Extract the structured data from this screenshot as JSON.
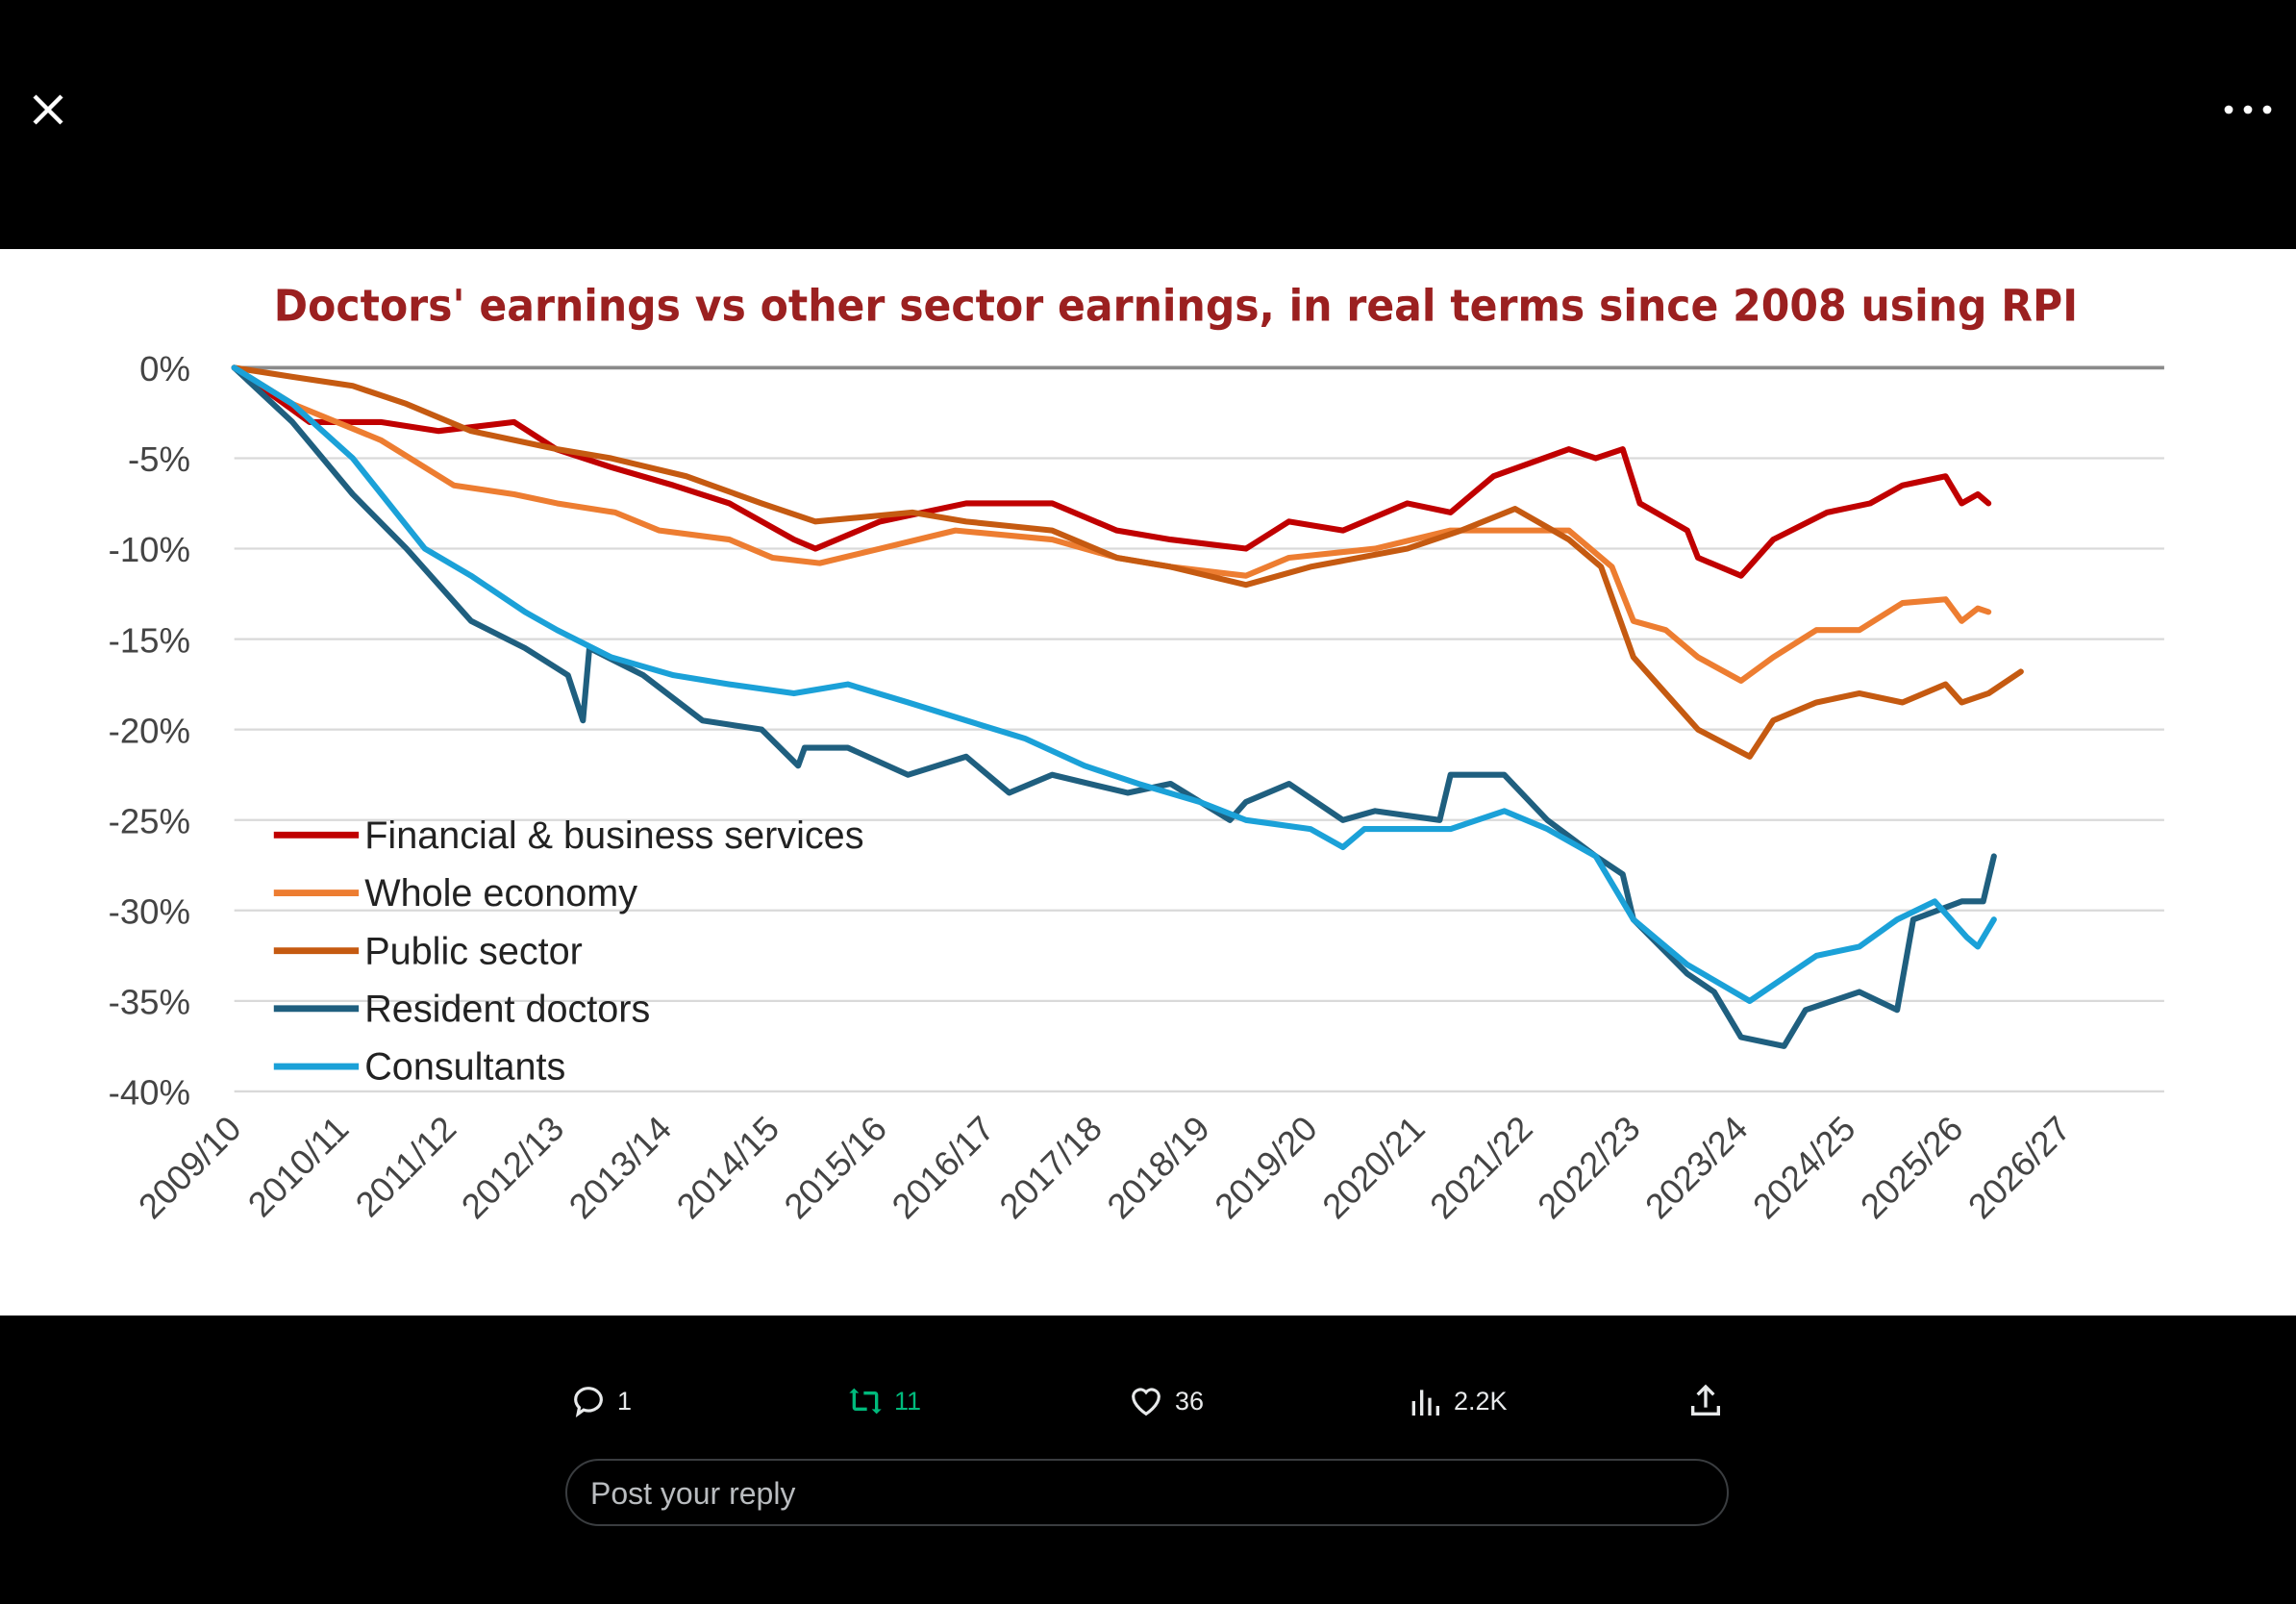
{
  "toolbar": {
    "close_icon": "close-icon",
    "more_icon": "more-icon"
  },
  "actions": {
    "replies": "1",
    "reposts": "11",
    "likes": "36",
    "views": "2.2K",
    "repost_color": "#00ba7c"
  },
  "reply": {
    "placeholder": "Post your reply"
  },
  "chart_data": {
    "type": "line",
    "title": "Doctors' earnings vs other sector earnings, in real terms since 2008 using RPI",
    "xlabel": "",
    "ylabel": "",
    "categories": [
      "2009/10",
      "2010/11",
      "2011/12",
      "2012/13",
      "2013/14",
      "2014/15",
      "2015/16",
      "2016/17",
      "2017/18",
      "2018/19",
      "2019/20",
      "2020/21",
      "2021/22",
      "2022/23",
      "2023/24",
      "2024/25",
      "2025/26",
      "2026/27"
    ],
    "y_ticks": [
      "0%",
      "-5%",
      "-10%",
      "-15%",
      "-20%",
      "-25%",
      "-30%",
      "-35%",
      "-40%"
    ],
    "ylim": [
      -40,
      0
    ],
    "grid": true,
    "legend_position": "bottom-left",
    "x_unit": "years since start of 2009/10 (category index)",
    "series": [
      {
        "name": "Financial & business services",
        "color": "#c00000",
        "points": [
          [
            0,
            0
          ],
          [
            0.7,
            -3
          ],
          [
            1.36,
            -3
          ],
          [
            1.9,
            -3.5
          ],
          [
            2.6,
            -3
          ],
          [
            2.99,
            -4.5
          ],
          [
            3.5,
            -5.5
          ],
          [
            4.08,
            -6.5
          ],
          [
            4.6,
            -7.5
          ],
          [
            5.2,
            -9.5
          ],
          [
            5.4,
            -10
          ],
          [
            6.0,
            -8.5
          ],
          [
            6.8,
            -7.5
          ],
          [
            7.6,
            -7.5
          ],
          [
            8.2,
            -9
          ],
          [
            8.7,
            -9.5
          ],
          [
            9.4,
            -10
          ],
          [
            9.8,
            -8.5
          ],
          [
            10.3,
            -9
          ],
          [
            10.9,
            -7.5
          ],
          [
            11.3,
            -8
          ],
          [
            11.7,
            -6
          ],
          [
            12.4,
            -4.5
          ],
          [
            12.65,
            -5
          ],
          [
            12.9,
            -4.5
          ],
          [
            13.06,
            -7.5
          ],
          [
            13.5,
            -9
          ],
          [
            13.6,
            -10.5
          ],
          [
            14.0,
            -11.5
          ],
          [
            14.3,
            -9.5
          ],
          [
            14.8,
            -8
          ],
          [
            15.2,
            -7.5
          ],
          [
            15.5,
            -6.5
          ],
          [
            15.9,
            -6
          ],
          [
            16.05,
            -7.5
          ],
          [
            16.2,
            -7
          ],
          [
            16.3,
            -7.5
          ]
        ]
      },
      {
        "name": "Whole economy",
        "color": "#ed7d31",
        "points": [
          [
            0,
            0
          ],
          [
            0.54,
            -2
          ],
          [
            1.36,
            -4
          ],
          [
            2.04,
            -6.5
          ],
          [
            2.6,
            -7
          ],
          [
            3.0,
            -7.5
          ],
          [
            3.54,
            -8
          ],
          [
            3.95,
            -9
          ],
          [
            4.6,
            -9.5
          ],
          [
            5.0,
            -10.5
          ],
          [
            5.44,
            -10.8
          ],
          [
            6.0,
            -10
          ],
          [
            6.7,
            -9
          ],
          [
            7.6,
            -9.5
          ],
          [
            8.2,
            -10.5
          ],
          [
            8.7,
            -11
          ],
          [
            9.4,
            -11.5
          ],
          [
            9.8,
            -10.5
          ],
          [
            10.6,
            -10
          ],
          [
            11.3,
            -9
          ],
          [
            12.0,
            -9
          ],
          [
            12.4,
            -9
          ],
          [
            12.8,
            -11
          ],
          [
            13.0,
            -14
          ],
          [
            13.3,
            -14.5
          ],
          [
            13.6,
            -16
          ],
          [
            14.0,
            -17.3
          ],
          [
            14.3,
            -16
          ],
          [
            14.7,
            -14.5
          ],
          [
            15.1,
            -14.5
          ],
          [
            15.5,
            -13
          ],
          [
            15.9,
            -12.8
          ],
          [
            16.05,
            -14
          ],
          [
            16.2,
            -13.3
          ],
          [
            16.3,
            -13.5
          ]
        ]
      },
      {
        "name": "Public sector",
        "color": "#c55a11",
        "points": [
          [
            0,
            0
          ],
          [
            0.54,
            -0.5
          ],
          [
            1.1,
            -1
          ],
          [
            1.6,
            -2
          ],
          [
            2.2,
            -3.5
          ],
          [
            3.0,
            -4.5
          ],
          [
            3.5,
            -5
          ],
          [
            4.2,
            -6
          ],
          [
            4.9,
            -7.5
          ],
          [
            5.4,
            -8.5
          ],
          [
            6.3,
            -8
          ],
          [
            6.8,
            -8.5
          ],
          [
            7.6,
            -9
          ],
          [
            8.2,
            -10.5
          ],
          [
            8.7,
            -11
          ],
          [
            9.4,
            -12
          ],
          [
            10.0,
            -11
          ],
          [
            10.9,
            -10
          ],
          [
            11.4,
            -9
          ],
          [
            11.9,
            -7.8
          ],
          [
            12.4,
            -9.5
          ],
          [
            12.7,
            -11
          ],
          [
            13.0,
            -16
          ],
          [
            13.3,
            -18
          ],
          [
            13.6,
            -20
          ],
          [
            14.08,
            -21.5
          ],
          [
            14.3,
            -19.5
          ],
          [
            14.7,
            -18.5
          ],
          [
            15.1,
            -18
          ],
          [
            15.5,
            -18.5
          ],
          [
            15.9,
            -17.5
          ],
          [
            16.05,
            -18.5
          ],
          [
            16.3,
            -18
          ],
          [
            16.6,
            -16.8
          ]
        ]
      },
      {
        "name": "Resident doctors",
        "color": "#1f5f7f",
        "points": [
          [
            0,
            0
          ],
          [
            0.54,
            -3
          ],
          [
            1.1,
            -7
          ],
          [
            1.6,
            -10
          ],
          [
            2.2,
            -14
          ],
          [
            2.7,
            -15.5
          ],
          [
            3.1,
            -17
          ],
          [
            3.24,
            -19.5
          ],
          [
            3.3,
            -15.5
          ],
          [
            3.8,
            -17
          ],
          [
            4.35,
            -19.5
          ],
          [
            4.9,
            -20
          ],
          [
            5.24,
            -22
          ],
          [
            5.3,
            -21
          ],
          [
            5.7,
            -21
          ],
          [
            6.26,
            -22.5
          ],
          [
            6.8,
            -21.5
          ],
          [
            7.2,
            -23.5
          ],
          [
            7.6,
            -22.5
          ],
          [
            8.3,
            -23.5
          ],
          [
            8.7,
            -23
          ],
          [
            9.25,
            -25
          ],
          [
            9.4,
            -24
          ],
          [
            9.8,
            -23
          ],
          [
            10.3,
            -25
          ],
          [
            10.6,
            -24.5
          ],
          [
            11.2,
            -25
          ],
          [
            11.3,
            -22.5
          ],
          [
            11.8,
            -22.5
          ],
          [
            12.2,
            -25
          ],
          [
            12.65,
            -27
          ],
          [
            12.9,
            -28
          ],
          [
            13.0,
            -30.5
          ],
          [
            13.5,
            -33.5
          ],
          [
            13.75,
            -34.5
          ],
          [
            14.0,
            -37
          ],
          [
            14.4,
            -37.5
          ],
          [
            14.6,
            -35.5
          ],
          [
            15.1,
            -34.5
          ],
          [
            15.45,
            -35.5
          ],
          [
            15.6,
            -30.5
          ],
          [
            16.05,
            -29.5
          ],
          [
            16.25,
            -29.5
          ],
          [
            16.35,
            -27
          ]
        ]
      },
      {
        "name": "Consultants",
        "color": "#1ba1d8",
        "points": [
          [
            0,
            0
          ],
          [
            0.54,
            -2
          ],
          [
            1.1,
            -5
          ],
          [
            1.77,
            -10
          ],
          [
            2.2,
            -11.5
          ],
          [
            2.7,
            -13.5
          ],
          [
            3.0,
            -14.5
          ],
          [
            3.5,
            -16
          ],
          [
            4.08,
            -17
          ],
          [
            4.6,
            -17.5
          ],
          [
            5.2,
            -18
          ],
          [
            5.7,
            -17.5
          ],
          [
            6.26,
            -18.5
          ],
          [
            6.8,
            -19.5
          ],
          [
            7.35,
            -20.5
          ],
          [
            7.9,
            -22
          ],
          [
            8.4,
            -23
          ],
          [
            8.97,
            -24
          ],
          [
            9.4,
            -25
          ],
          [
            10.0,
            -25.5
          ],
          [
            10.3,
            -26.5
          ],
          [
            10.5,
            -25.5
          ],
          [
            11.3,
            -25.5
          ],
          [
            11.8,
            -24.5
          ],
          [
            12.2,
            -25.5
          ],
          [
            12.65,
            -27
          ],
          [
            13.0,
            -30.5
          ],
          [
            13.5,
            -33
          ],
          [
            14.08,
            -35
          ],
          [
            14.7,
            -32.5
          ],
          [
            15.1,
            -32
          ],
          [
            15.45,
            -30.5
          ],
          [
            15.8,
            -29.5
          ],
          [
            16.1,
            -31.5
          ],
          [
            16.2,
            -32
          ],
          [
            16.35,
            -30.5
          ]
        ]
      }
    ]
  }
}
